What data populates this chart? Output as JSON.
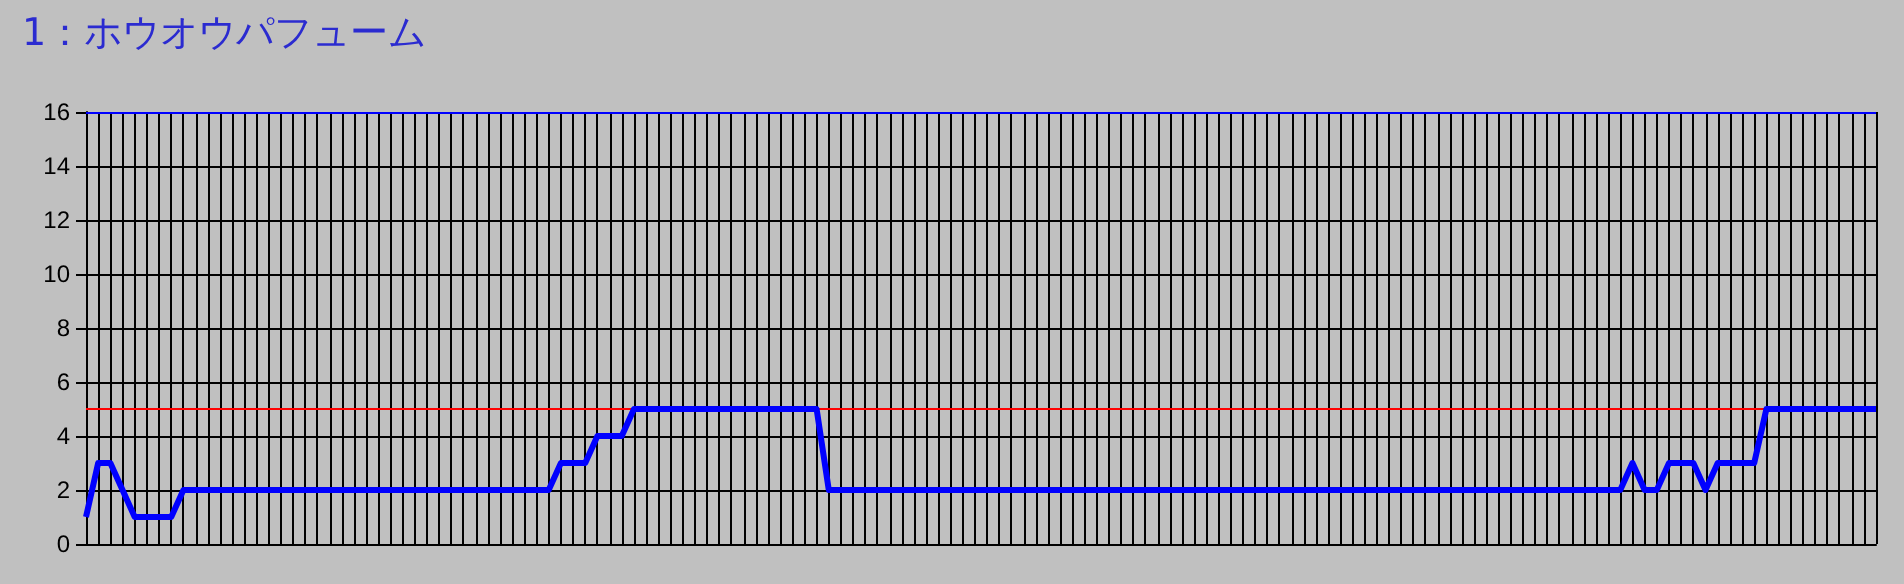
{
  "chart_data": {
    "type": "line",
    "title": "1：ホウオウパフューム",
    "categories": [
      null,
      null,
      null,
      null,
      null,
      null,
      null,
      null,
      null,
      null,
      null,
      null,
      null,
      null,
      null,
      null,
      null,
      null,
      null,
      null,
      null,
      null,
      null,
      null,
      null,
      null,
      null,
      null,
      null,
      null,
      null,
      null,
      null,
      null,
      null,
      null,
      null,
      null,
      null,
      null,
      null,
      null,
      null,
      null,
      null,
      null,
      null,
      null,
      null,
      null,
      null,
      null,
      null,
      null,
      null,
      null,
      null,
      null,
      null,
      null,
      null,
      null,
      null,
      null,
      null,
      null,
      null,
      null,
      null,
      null,
      null,
      null,
      null,
      null,
      null,
      null,
      null,
      null,
      null,
      null,
      null,
      null,
      null,
      null,
      null,
      null,
      null,
      null,
      null,
      null,
      null,
      null,
      null,
      null,
      null,
      null,
      null,
      null,
      null,
      null,
      null,
      null,
      null,
      null,
      null,
      null,
      null,
      null,
      null,
      null,
      null,
      null,
      null,
      null,
      null,
      null,
      null,
      null,
      null,
      null,
      null,
      null,
      null,
      null,
      null,
      null,
      null,
      null,
      null,
      null,
      null,
      null,
      null,
      null,
      null,
      null,
      null,
      null,
      null,
      null,
      null,
      null,
      null,
      null,
      null,
      null,
      null,
      null
    ],
    "series": [
      {
        "color": "#0000ff",
        "values": [
          1,
          3,
          3,
          2,
          1,
          1,
          1,
          1,
          2,
          2,
          2,
          2,
          2,
          2,
          2,
          2,
          2,
          2,
          2,
          2,
          2,
          2,
          2,
          2,
          2,
          2,
          2,
          2,
          2,
          2,
          2,
          2,
          2,
          2,
          2,
          2,
          2,
          2,
          2,
          3,
          3,
          3,
          4,
          4,
          4,
          5,
          5,
          5,
          5,
          5,
          5,
          5,
          5,
          5,
          5,
          5,
          5,
          5,
          5,
          5,
          5,
          2,
          2,
          2,
          2,
          2,
          2,
          2,
          2,
          2,
          2,
          2,
          2,
          2,
          2,
          2,
          2,
          2,
          2,
          2,
          2,
          2,
          2,
          2,
          2,
          2,
          2,
          2,
          2,
          2,
          2,
          2,
          2,
          2,
          2,
          2,
          2,
          2,
          2,
          2,
          2,
          2,
          2,
          2,
          2,
          2,
          2,
          2,
          2,
          2,
          2,
          2,
          2,
          2,
          2,
          2,
          2,
          2,
          2,
          2,
          2,
          2,
          2,
          2,
          2,
          2,
          2,
          3,
          2,
          2,
          3,
          3,
          3,
          2,
          3,
          3,
          3,
          3,
          5,
          5,
          5,
          5,
          5,
          5,
          5,
          5,
          5,
          5
        ]
      }
    ],
    "ylim": [
      0,
      16
    ],
    "yticks": [
      0,
      2,
      4,
      6,
      8,
      10,
      12,
      14,
      16
    ],
    "grid": true,
    "marker": "none",
    "line_style": "solid",
    "ref_lines": [
      {
        "axis": "y",
        "value": 5,
        "color": "#ff0000"
      },
      {
        "axis": "y",
        "value": 16,
        "color": "#0000ff"
      }
    ]
  }
}
